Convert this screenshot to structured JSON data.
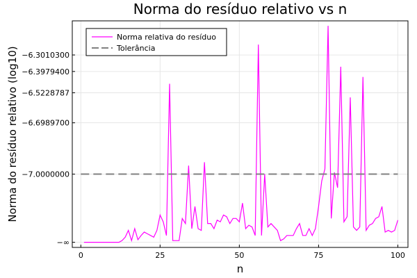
{
  "chart_data": {
    "type": "line",
    "title": "Norma do resíduo relativo vs n",
    "xlabel": "n",
    "ylabel": "Norma do resíduo relativo (log10)",
    "xlim": [
      0,
      100
    ],
    "xticks": [
      0,
      25,
      50,
      75,
      100
    ],
    "xtick_labels": [
      "0",
      "25",
      "50",
      "75",
      "100"
    ],
    "yticks": [
      -7.4,
      -7.0,
      -6.69897,
      -6.5228787,
      -6.39794,
      -6.30103
    ],
    "ytick_labels": [
      "−∞",
      "−7.0000000",
      "−6.6989700",
      "−6.5228787",
      "−6.3979400",
      "−6.3010300"
    ],
    "grid": true,
    "legend_position": "top-left",
    "series": [
      {
        "name": "Norma relativa do resíduo",
        "color": "#ff00ff",
        "style": "solid",
        "x": [
          1,
          2,
          3,
          4,
          5,
          6,
          7,
          8,
          9,
          10,
          11,
          12,
          13,
          14,
          15,
          16,
          17,
          18,
          19,
          20,
          21,
          22,
          23,
          24,
          25,
          26,
          27,
          28,
          29,
          30,
          31,
          32,
          33,
          34,
          35,
          36,
          37,
          38,
          39,
          40,
          41,
          42,
          43,
          44,
          45,
          46,
          47,
          48,
          49,
          50,
          51,
          52,
          53,
          54,
          55,
          56,
          57,
          58,
          59,
          60,
          61,
          62,
          63,
          64,
          65,
          66,
          67,
          68,
          69,
          70,
          71,
          72,
          73,
          74,
          75,
          76,
          77,
          78,
          79,
          80,
          81,
          82,
          83,
          84,
          85,
          86,
          87,
          88,
          89,
          90,
          91,
          92,
          93,
          94,
          95,
          96,
          97,
          98,
          99,
          100
        ],
        "y": [
          -7.4,
          -7.4,
          -7.4,
          -7.4,
          -7.4,
          -7.4,
          -7.4,
          -7.4,
          -7.4,
          -7.4,
          -7.4,
          -7.4,
          -7.39,
          -7.37,
          -7.33,
          -7.39,
          -7.32,
          -7.385,
          -7.36,
          -7.34,
          -7.35,
          -7.36,
          -7.37,
          -7.33,
          -7.24,
          -7.28,
          -7.36,
          -6.47,
          -7.39,
          -7.39,
          -7.39,
          -7.26,
          -7.29,
          -6.95,
          -7.32,
          -7.19,
          -7.32,
          -7.33,
          -6.93,
          -7.29,
          -7.29,
          -7.32,
          -7.27,
          -7.28,
          -7.24,
          -7.25,
          -7.29,
          -7.26,
          -7.26,
          -7.28,
          -7.17,
          -7.32,
          -7.3,
          -7.31,
          -7.36,
          -6.24,
          -7.36,
          -7.0,
          -7.31,
          -7.29,
          -7.31,
          -7.33,
          -7.39,
          -7.38,
          -7.36,
          -7.36,
          -7.36,
          -7.32,
          -7.29,
          -7.36,
          -7.36,
          -7.32,
          -7.36,
          -7.32,
          -7.19,
          -7.04,
          -6.97,
          -6.13,
          -7.26,
          -6.99,
          -7.08,
          -6.37,
          -7.28,
          -7.25,
          -6.55,
          -7.31,
          -7.33,
          -7.31,
          -6.43,
          -7.33,
          -7.3,
          -7.29,
          -7.26,
          -7.25,
          -7.19,
          -7.34,
          -7.33,
          -7.34,
          -7.33,
          -7.27
        ]
      },
      {
        "name": "Tolerância",
        "color": "#808080",
        "style": "dashed",
        "x": [
          0,
          100
        ],
        "y": [
          -7.0,
          -7.0
        ]
      }
    ]
  }
}
